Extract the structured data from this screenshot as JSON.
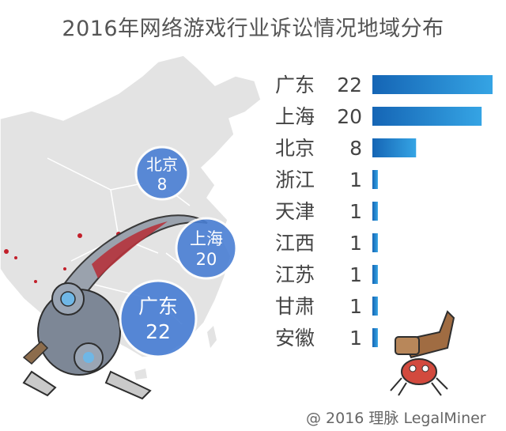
{
  "title": "2016年网络游戏行业诉讼情况地域分布",
  "credit": "@ 2016 理脉 LegalMiner",
  "bubbles": [
    {
      "city": "北京",
      "value": "8"
    },
    {
      "city": "上海",
      "value": "20"
    },
    {
      "city": "广东",
      "value": "22"
    }
  ],
  "chart_data": {
    "type": "bar",
    "orientation": "horizontal",
    "title": "2016年网络游戏行业诉讼情况地域分布",
    "categories": [
      "广东",
      "上海",
      "北京",
      "浙江",
      "天津",
      "江西",
      "江苏",
      "甘肃",
      "安徽"
    ],
    "values": [
      22,
      20,
      8,
      1,
      1,
      1,
      1,
      1,
      1
    ],
    "xlim": [
      0,
      22
    ],
    "grid": false,
    "bar_gradient": [
      "#1565b5",
      "#35a4e4"
    ]
  },
  "colors": {
    "map_fill": "#e3e3e3",
    "bubble_fill": "#4a7fd4",
    "bubble_stroke": "#ffffff"
  }
}
